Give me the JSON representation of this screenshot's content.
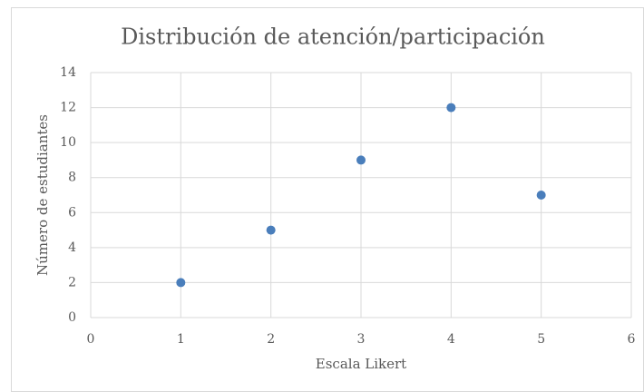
{
  "chart_data": {
    "type": "scatter",
    "title": "Distribución de atención/participación",
    "x_label": "Escala Likert",
    "y_label": "Número de estudiantes",
    "series": [
      {
        "name": "Número de estudiantes",
        "color": "#4a7ebb",
        "x": [
          1,
          2,
          3,
          4,
          5
        ],
        "values": [
          2,
          5,
          9,
          12,
          7
        ]
      }
    ],
    "xlim": [
      0,
      6
    ],
    "xticks": [
      0,
      1,
      2,
      3,
      4,
      5,
      6
    ],
    "ylim": [
      0,
      14
    ],
    "yticks": [
      0,
      2,
      4,
      6,
      8,
      10,
      12,
      14
    ],
    "grid": true
  }
}
